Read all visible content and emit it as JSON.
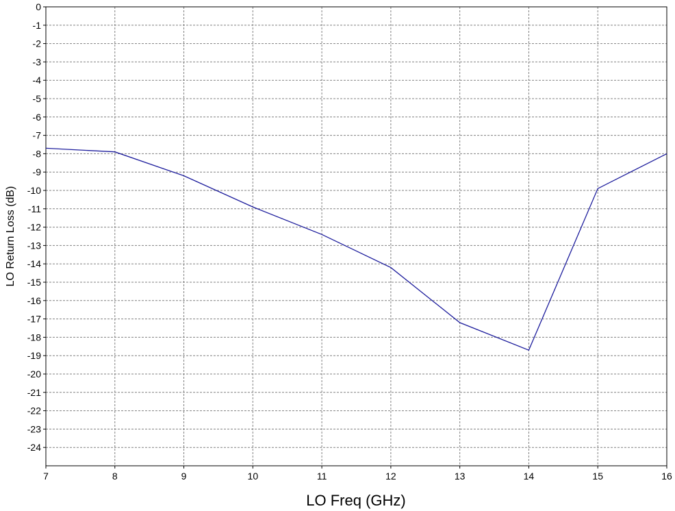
{
  "chart_data": {
    "type": "line",
    "title": "",
    "xlabel": "LO Freq (GHz)",
    "ylabel": "LO Return Loss (dB)",
    "xlim": [
      7,
      16
    ],
    "ylim": [
      -25,
      0
    ],
    "x_ticks": [
      7,
      8,
      9,
      10,
      11,
      12,
      13,
      14,
      15,
      16
    ],
    "y_ticks": [
      0,
      -1,
      -2,
      -3,
      -4,
      -5,
      -6,
      -7,
      -8,
      -9,
      -10,
      -11,
      -12,
      -13,
      -14,
      -15,
      -16,
      -17,
      -18,
      -19,
      -20,
      -21,
      -22,
      -23,
      -24
    ],
    "grid": true,
    "series": [
      {
        "color": "#1c1c9c",
        "x": [
          7,
          8,
          9,
          10,
          11,
          12,
          13,
          14,
          15,
          16
        ],
        "y": [
          -7.7,
          -7.9,
          -9.2,
          -10.9,
          -12.4,
          -14.2,
          -17.2,
          -18.7,
          -9.9,
          -8.0
        ]
      }
    ]
  }
}
